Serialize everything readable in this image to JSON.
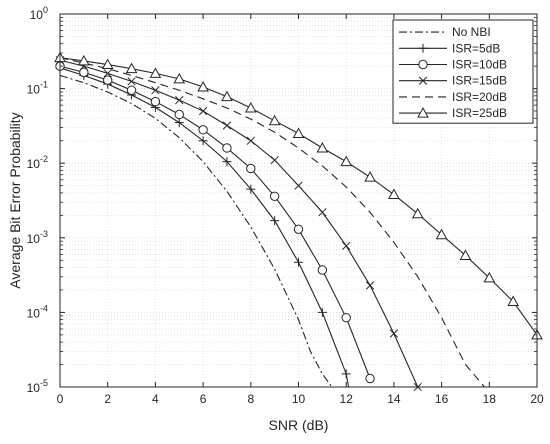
{
  "chart_data": {
    "type": "line",
    "title": "",
    "xlabel": "SNR (dB)",
    "ylabel": "Average Bit Error Probability",
    "xlim": [
      0,
      20
    ],
    "ylim": [
      1e-05,
      1
    ],
    "yscale": "log",
    "xticks": [
      0,
      2,
      4,
      6,
      8,
      10,
      12,
      14,
      16,
      18,
      20
    ],
    "xtick_labels": [
      "0",
      "2",
      "4",
      "6",
      "8",
      "10",
      "12",
      "14",
      "16",
      "18",
      "20"
    ],
    "yticks": [
      {
        "value": 1,
        "base": "10",
        "exp": "0"
      },
      {
        "value": 0.1,
        "base": "10",
        "exp": "-1"
      },
      {
        "value": 0.01,
        "base": "10",
        "exp": "-2"
      },
      {
        "value": 0.001,
        "base": "10",
        "exp": "-3"
      },
      {
        "value": 0.0001,
        "base": "10",
        "exp": "-4"
      },
      {
        "value": 1e-05,
        "base": "10",
        "exp": "-5"
      }
    ],
    "grid": true,
    "legend_position": "top-right",
    "series": [
      {
        "name": "No NBI",
        "line_style": "dashdot",
        "marker": "none",
        "x": [
          0,
          1,
          2,
          3,
          4,
          5,
          6,
          7,
          8,
          9,
          10,
          10.5,
          11,
          11.4
        ],
        "y": [
          0.15,
          0.12,
          0.09,
          0.063,
          0.04,
          0.022,
          0.0105,
          0.0042,
          0.0014,
          0.00038,
          8e-05,
          3e-05,
          1.5e-05,
          1e-05
        ]
      },
      {
        "name": "ISR=5dB",
        "line_style": "solid",
        "marker": "plus",
        "x": [
          0,
          1,
          2,
          3,
          4,
          5,
          6,
          7,
          8,
          9,
          10,
          11,
          12,
          12.1
        ],
        "y": [
          0.19,
          0.15,
          0.115,
          0.082,
          0.056,
          0.035,
          0.02,
          0.0105,
          0.0045,
          0.0017,
          0.00047,
          0.0001,
          1.5e-05,
          1e-05
        ]
      },
      {
        "name": "ISR=10dB",
        "line_style": "solid",
        "marker": "circle",
        "x": [
          0,
          1,
          2,
          3,
          4,
          5,
          6,
          7,
          8,
          9,
          10,
          11,
          12,
          13
        ],
        "y": [
          0.2,
          0.165,
          0.13,
          0.095,
          0.067,
          0.045,
          0.028,
          0.016,
          0.0085,
          0.0036,
          0.0013,
          0.00037,
          8.5e-05,
          1.3e-05
        ]
      },
      {
        "name": "ISR=15dB",
        "line_style": "solid",
        "marker": "x",
        "x": [
          0,
          1,
          2,
          3,
          4,
          5,
          6,
          7,
          8,
          9,
          10,
          11,
          12,
          13,
          14,
          15
        ],
        "y": [
          0.24,
          0.2,
          0.16,
          0.125,
          0.095,
          0.07,
          0.05,
          0.032,
          0.02,
          0.011,
          0.005,
          0.0022,
          0.00078,
          0.00023,
          5.2e-05,
          1e-05
        ]
      },
      {
        "name": "ISR=20dB",
        "line_style": "dashed",
        "marker": "none",
        "x": [
          0,
          1,
          2,
          3,
          4,
          5,
          6,
          7,
          8,
          9,
          10,
          11,
          12,
          13,
          14,
          15,
          16,
          17,
          17.8
        ],
        "y": [
          0.26,
          0.22,
          0.185,
          0.15,
          0.12,
          0.095,
          0.073,
          0.055,
          0.039,
          0.026,
          0.016,
          0.0092,
          0.0048,
          0.0022,
          0.00087,
          0.0003,
          8.5e-05,
          2e-05,
          1e-05
        ]
      },
      {
        "name": "ISR=25dB",
        "line_style": "solid",
        "marker": "triangle",
        "x": [
          0,
          1,
          2,
          3,
          4,
          5,
          6,
          7,
          8,
          9,
          10,
          11,
          12,
          13,
          14,
          15,
          16,
          17,
          18,
          19,
          20
        ],
        "y": [
          0.26,
          0.235,
          0.21,
          0.185,
          0.16,
          0.135,
          0.105,
          0.078,
          0.055,
          0.037,
          0.025,
          0.016,
          0.0105,
          0.0065,
          0.0038,
          0.0021,
          0.0011,
          0.00058,
          0.00029,
          0.00014,
          5e-05
        ]
      }
    ]
  }
}
